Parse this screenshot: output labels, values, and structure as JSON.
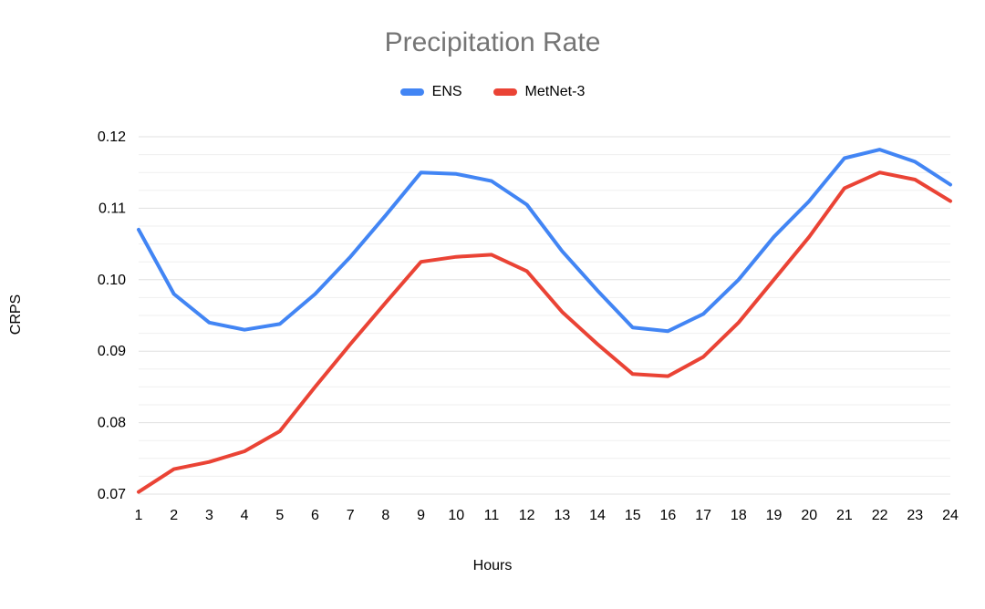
{
  "chart_data": {
    "type": "line",
    "title": "Precipitation Rate",
    "xlabel": "Hours",
    "ylabel": "CRPS",
    "x": [
      1,
      2,
      3,
      4,
      5,
      6,
      7,
      8,
      9,
      10,
      11,
      12,
      13,
      14,
      15,
      16,
      17,
      18,
      19,
      20,
      21,
      22,
      23,
      24
    ],
    "ylim": [
      0.07,
      0.12
    ],
    "yticks": [
      0.07,
      0.08,
      0.09,
      0.1,
      0.11,
      0.12
    ],
    "minor_gridline_step": 0.0025,
    "grid": true,
    "legend_position": "top",
    "series": [
      {
        "name": "ENS",
        "color": "#4285F4",
        "values": [
          0.107,
          0.098,
          0.094,
          0.093,
          0.0938,
          0.098,
          0.1032,
          0.109,
          0.115,
          0.1148,
          0.1138,
          0.1105,
          0.104,
          0.0985,
          0.0933,
          0.0928,
          0.0952,
          0.1,
          0.106,
          0.111,
          0.117,
          0.1182,
          0.1165,
          0.1133
        ]
      },
      {
        "name": "MetNet-3",
        "color": "#EA4335",
        "values": [
          0.0703,
          0.0735,
          0.0745,
          0.076,
          0.0788,
          0.085,
          0.091,
          0.0968,
          0.1025,
          0.1032,
          0.1035,
          0.1012,
          0.0955,
          0.091,
          0.0868,
          0.0865,
          0.0892,
          0.094,
          0.1,
          0.106,
          0.1128,
          0.115,
          0.114,
          0.111
        ]
      }
    ],
    "colors": {
      "title": "#757575",
      "tick_labels": "#000000",
      "major_gridline": "#e0e0e0",
      "minor_gridline": "#efefef",
      "background": "#ffffff"
    }
  }
}
